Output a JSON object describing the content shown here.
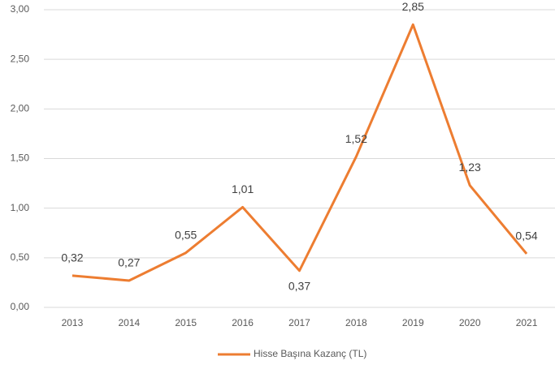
{
  "chart_data": {
    "type": "line",
    "categories": [
      "2013",
      "2014",
      "2015",
      "2016",
      "2017",
      "2018",
      "2019",
      "2020",
      "2021"
    ],
    "series": [
      {
        "name": "Hisse Başına Kazanç (TL)",
        "color": "#ed7d31",
        "values": [
          0.32,
          0.27,
          0.55,
          1.01,
          0.37,
          1.52,
          2.85,
          1.23,
          0.54
        ],
        "value_labels": [
          "0,32",
          "0,27",
          "0,55",
          "1,01",
          "0,37",
          "1,52",
          "2,85",
          "1,23",
          "0,54"
        ]
      }
    ],
    "ylim": [
      0,
      3
    ],
    "yticks": [
      {
        "value": 0,
        "label": "0,00"
      },
      {
        "value": 0.5,
        "label": "0,50"
      },
      {
        "value": 1,
        "label": "1,00"
      },
      {
        "value": 1.5,
        "label": "1,50"
      },
      {
        "value": 2,
        "label": "2,00"
      },
      {
        "value": 2.5,
        "label": "2,50"
      },
      {
        "value": 3,
        "label": "3,00"
      }
    ],
    "grid": true,
    "legend": "bottom"
  }
}
